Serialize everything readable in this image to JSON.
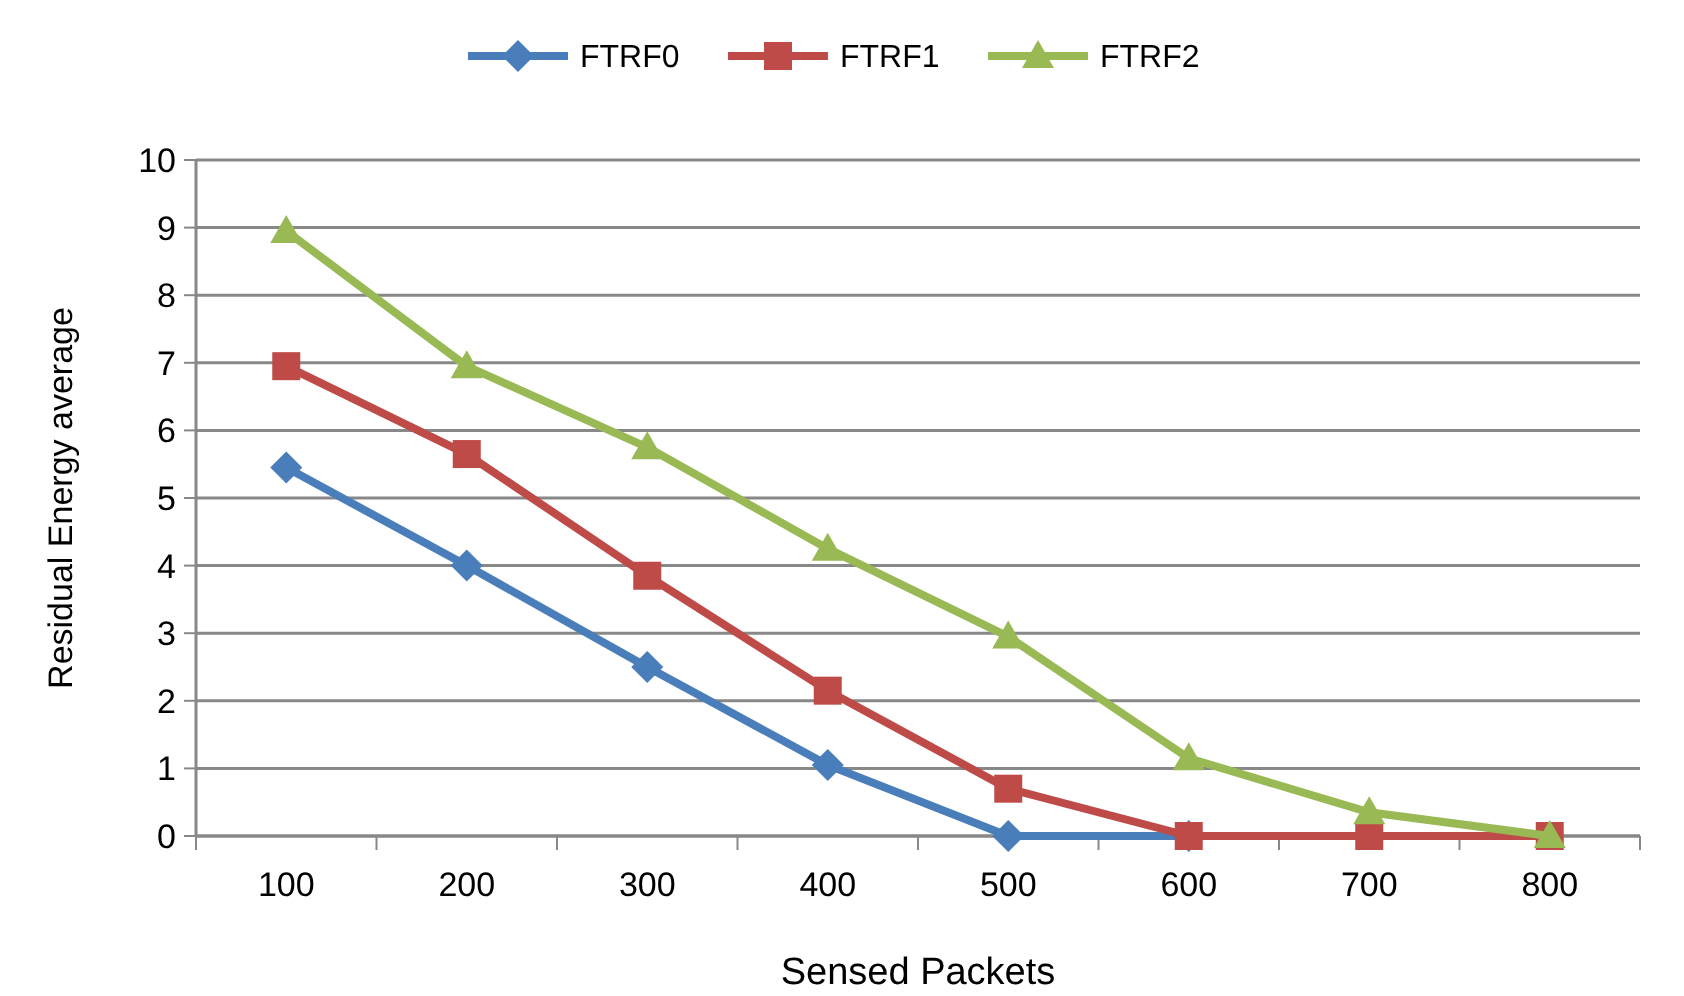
{
  "chart_data": {
    "type": "line",
    "xlabel": "Sensed Packets",
    "ylabel": "Residual Energy average",
    "categories": [
      "100",
      "200",
      "300",
      "400",
      "500",
      "600",
      "700",
      "800"
    ],
    "ylim": [
      0,
      10
    ],
    "yticks": [
      0,
      1,
      2,
      3,
      4,
      5,
      6,
      7,
      8,
      9,
      10
    ],
    "grid": "y",
    "legend": "top",
    "series": [
      {
        "name": "FTRF0",
        "color": "#4a7ebb",
        "marker": "diamond",
        "values": [
          5.45,
          4.0,
          2.5,
          1.05,
          0,
          0,
          null,
          null
        ]
      },
      {
        "name": "FTRF1",
        "color": "#be4b48",
        "marker": "square",
        "values": [
          6.95,
          5.65,
          3.85,
          2.15,
          0.7,
          0,
          0,
          0
        ]
      },
      {
        "name": "FTRF2",
        "color": "#98b954",
        "marker": "triangle",
        "values": [
          8.95,
          6.95,
          5.75,
          4.25,
          2.95,
          1.15,
          0.35,
          0
        ]
      }
    ]
  }
}
